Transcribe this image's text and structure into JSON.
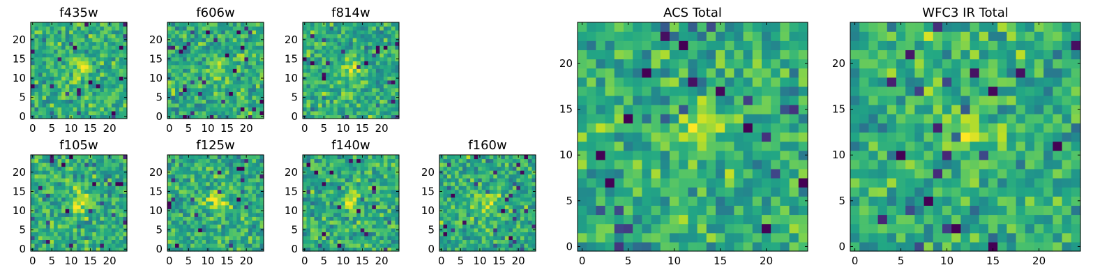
{
  "chart_data": [
    {
      "type": "heatmap",
      "title": "f435w",
      "x_ticks": [
        0,
        5,
        10,
        15,
        20
      ],
      "y_ticks": [
        0,
        5,
        10,
        15,
        20
      ],
      "size": 25,
      "seed": 11
    },
    {
      "type": "heatmap",
      "title": "f606w",
      "x_ticks": [
        0,
        5,
        10,
        15,
        20
      ],
      "y_ticks": [
        0,
        5,
        10,
        15,
        20
      ],
      "size": 25,
      "seed": 23
    },
    {
      "type": "heatmap",
      "title": "f814w",
      "x_ticks": [
        0,
        5,
        10,
        15,
        20
      ],
      "y_ticks": [
        0,
        5,
        10,
        15,
        20
      ],
      "size": 25,
      "seed": 37
    },
    {
      "type": "heatmap",
      "title": "f105w",
      "x_ticks": [
        0,
        5,
        10,
        15,
        20
      ],
      "y_ticks": [
        0,
        5,
        10,
        15,
        20
      ],
      "size": 25,
      "seed": 41
    },
    {
      "type": "heatmap",
      "title": "f125w",
      "x_ticks": [
        0,
        5,
        10,
        15,
        20
      ],
      "y_ticks": [
        0,
        5,
        10,
        15,
        20
      ],
      "size": 25,
      "seed": 53
    },
    {
      "type": "heatmap",
      "title": "f140w",
      "x_ticks": [
        0,
        5,
        10,
        15,
        20
      ],
      "y_ticks": [
        0,
        5,
        10,
        15,
        20
      ],
      "size": 25,
      "seed": 67
    },
    {
      "type": "heatmap",
      "title": "f160w",
      "x_ticks": [
        0,
        5,
        10,
        15,
        20
      ],
      "y_ticks": [
        0,
        5,
        10,
        15,
        20
      ],
      "size": 25,
      "seed": 79
    },
    {
      "type": "heatmap",
      "title": "ACS Total",
      "x_ticks": [
        0,
        5,
        10,
        15,
        20
      ],
      "y_ticks": [
        0,
        5,
        10,
        15,
        20
      ],
      "size": 25,
      "seed": 97
    },
    {
      "type": "heatmap",
      "title": "WFC3 IR Total",
      "x_ticks": [
        0,
        5,
        10,
        15,
        20
      ],
      "y_ticks": [
        0,
        5,
        10,
        15,
        20
      ],
      "size": 25,
      "seed": 113
    }
  ],
  "colors": {
    "colormap": "viridis",
    "frame": "#000000",
    "background": "#ffffff"
  }
}
